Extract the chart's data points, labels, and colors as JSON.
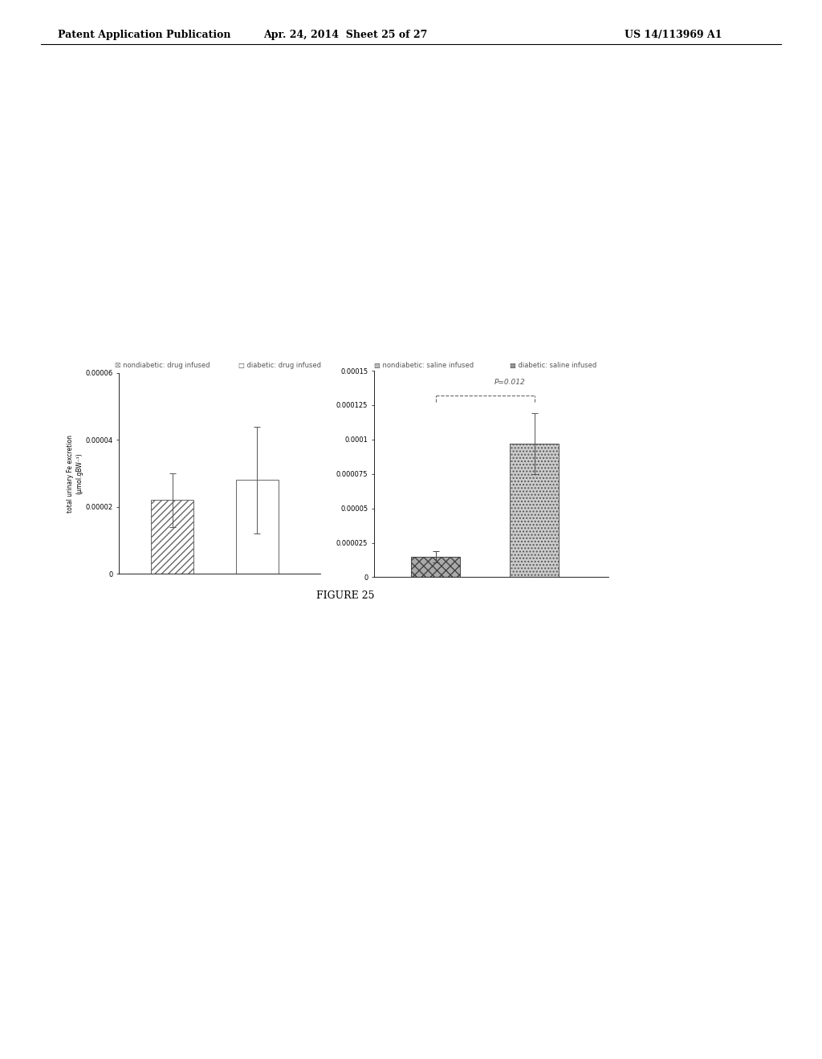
{
  "left_chart": {
    "bars": [
      {
        "label": "nondiabetic: drug infused",
        "value": 2.2e-05,
        "error": 8e-06,
        "hatch": "////",
        "facecolor": "white",
        "edgecolor": "#666666"
      },
      {
        "label": "diabetic: drug infused",
        "value": 2.8e-05,
        "error": 1.6e-05,
        "hatch": "",
        "facecolor": "white",
        "edgecolor": "#666666"
      }
    ],
    "ylim": [
      0,
      6e-05
    ],
    "yticks": [
      0,
      2e-05,
      4e-05,
      6e-05
    ],
    "ytick_labels": [
      "0",
      "0.00002",
      "0.00004",
      "0.00006"
    ],
    "ylabel": "total urinary Fe excretion\n(µmol.gBW⁻¹)"
  },
  "right_chart": {
    "bars": [
      {
        "label": "nondiabetic: saline infused",
        "value": 1.5e-05,
        "error": 4e-06,
        "hatch": "xxx",
        "facecolor": "#aaaaaa",
        "edgecolor": "#444444"
      },
      {
        "label": "diabetic: saline infused",
        "value": 9.7e-05,
        "error": 2.2e-05,
        "hatch": "....",
        "facecolor": "#bbbbbb",
        "edgecolor": "#555555"
      }
    ],
    "ylim": [
      0,
      0.00015
    ],
    "yticks": [
      0,
      2.5e-05,
      5e-05,
      7.5e-05,
      0.0001,
      0.000125,
      0.00015
    ],
    "ytick_labels": [
      "0",
      "0.000025",
      "0.00005",
      "0.000075",
      "0.0001",
      "0.000125",
      "0.00015"
    ],
    "p_value": "P=0.012"
  },
  "figure_label": "FIGURE 25",
  "header_left": "Patent Application Publication",
  "header_center": "Apr. 24, 2014  Sheet 25 of 27",
  "header_right": "US 14/113969 A1",
  "left_legend1": "☒ nondiabetic: drug infused",
  "left_legend2": "□ diabetic: drug infused",
  "right_legend1": "▨ nondiabetic: saline infused",
  "right_legend2": "▩ diabetic: saline infused"
}
